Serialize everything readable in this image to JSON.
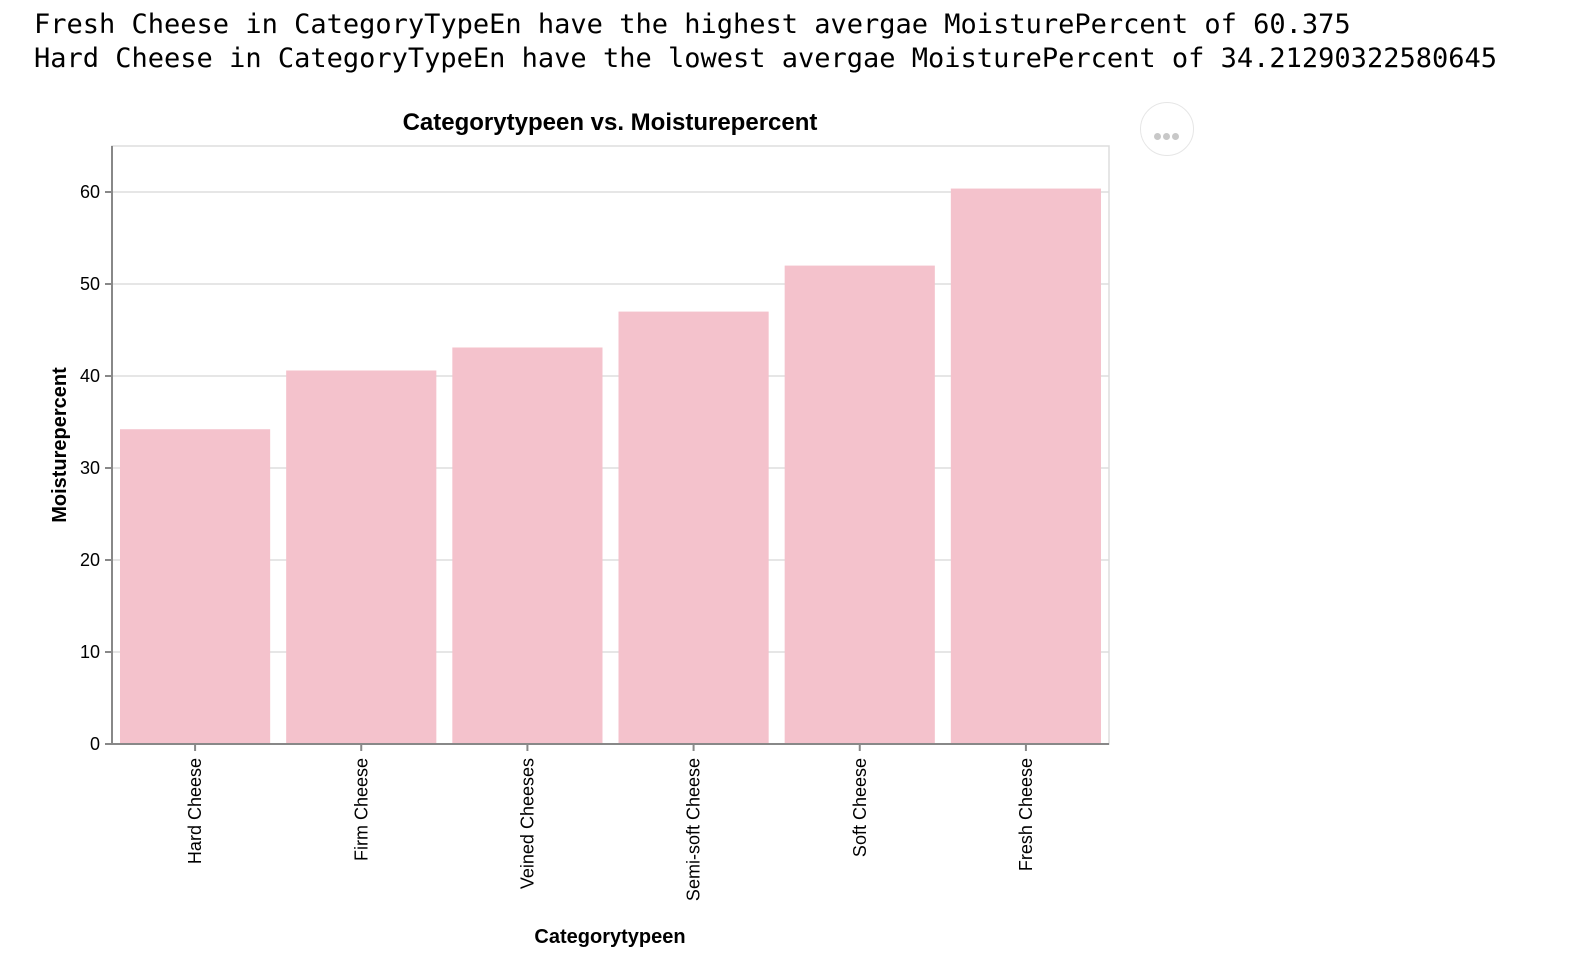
{
  "summary": {
    "line1": "Fresh Cheese in CategoryTypeEn have the highest avergae MoisturePercent of 60.375",
    "line2": "Hard Cheese in CategoryTypeEn have the lowest avergae MoisturePercent of 34.21290322580645"
  },
  "menu": {
    "icon": "ellipsis-icon"
  },
  "chart_data": {
    "type": "bar",
    "title": "Categorytypeen vs. Moisturepercent",
    "xlabel": "Categorytypeen",
    "ylabel": "Moisturepercent",
    "categories": [
      "Hard Cheese",
      "Firm Cheese",
      "Veined Cheeses",
      "Semi-soft Cheese",
      "Soft Cheese",
      "Fresh Cheese"
    ],
    "values": [
      34.21290322580645,
      40.6,
      43.1,
      47.0,
      52.0,
      60.375
    ],
    "ylim": [
      0,
      65
    ],
    "yticks": [
      0,
      10,
      20,
      30,
      40,
      50,
      60
    ],
    "grid": true,
    "bar_color": "#f4c2cc"
  }
}
